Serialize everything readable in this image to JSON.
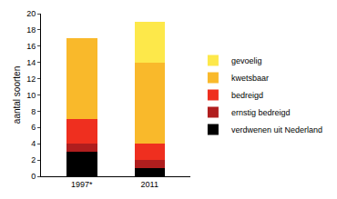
{
  "chart_data": {
    "type": "bar",
    "stacked": true,
    "grid": false,
    "legend": "right",
    "y_label": "aantal soorten",
    "categories": [
      "1997*",
      "2011"
    ],
    "series": [
      {
        "name": "verdwenen uit Nederland",
        "color": "#000000",
        "values": [
          3,
          1
        ]
      },
      {
        "name": "ernstig bedreigd",
        "color": "#b01e1e",
        "values": [
          1,
          1
        ]
      },
      {
        "name": "bedreigd",
        "color": "#ef2f1f",
        "values": [
          3,
          2
        ]
      },
      {
        "name": "kwetsbaar",
        "color": "#f9b92b",
        "values": [
          10,
          10
        ]
      },
      {
        "name": "gevoelig",
        "color": "#fde84a",
        "values": [
          0,
          5
        ]
      }
    ],
    "ylim": [
      0,
      20
    ],
    "yticks": [
      0,
      2,
      4,
      6,
      8,
      10,
      12,
      14,
      16,
      18,
      20
    ]
  }
}
